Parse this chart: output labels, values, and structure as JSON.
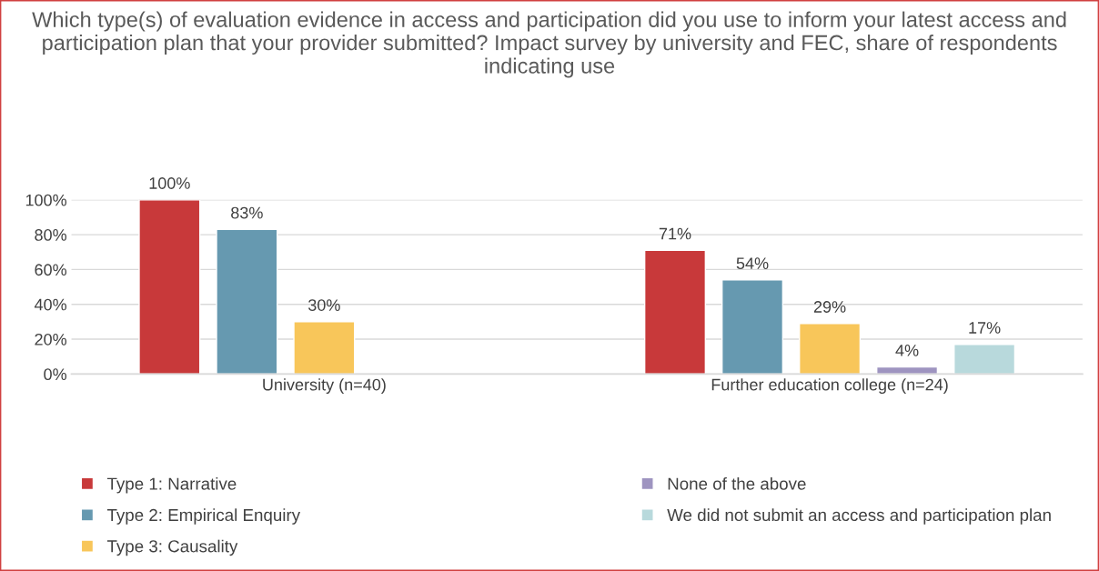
{
  "chart_data": {
    "type": "bar",
    "title": "Which type(s) of evaluation evidence in access and participation did you use to inform your latest access and participation plan that your provider submitted? Impact survey by university and FEC, share of respondents indicating use",
    "categories": [
      "University (n=40)",
      "Further education college (n=24)"
    ],
    "series": [
      {
        "name": "Type 1: Narrative",
        "color": "#c8393a",
        "values": [
          100,
          71
        ]
      },
      {
        "name": "Type 2: Empirical Enquiry",
        "color": "#6699b0",
        "values": [
          83,
          54
        ]
      },
      {
        "name": "Type 3: Causality",
        "color": "#f8c65a",
        "values": [
          30,
          29
        ]
      },
      {
        "name": "None of the above",
        "color": "#9e94c0",
        "values": [
          null,
          4
        ]
      },
      {
        "name": "We did not submit an access and participation plan",
        "color": "#b8d9dc",
        "values": [
          null,
          17
        ]
      }
    ],
    "ylim": [
      0,
      100
    ],
    "yticks": [
      {
        "value": 0,
        "label": "0%"
      },
      {
        "value": 20,
        "label": "20%"
      },
      {
        "value": 40,
        "label": "40%"
      },
      {
        "value": 60,
        "label": "60%"
      },
      {
        "value": 80,
        "label": "80%"
      },
      {
        "value": 100,
        "label": "100%"
      }
    ],
    "value_labels": [
      [
        "100%",
        "71%"
      ],
      [
        "83%",
        "54%"
      ],
      [
        "30%",
        "29%"
      ],
      [
        null,
        "4%"
      ],
      [
        null,
        "17%"
      ]
    ],
    "grid": "y",
    "legend": "bottom"
  }
}
